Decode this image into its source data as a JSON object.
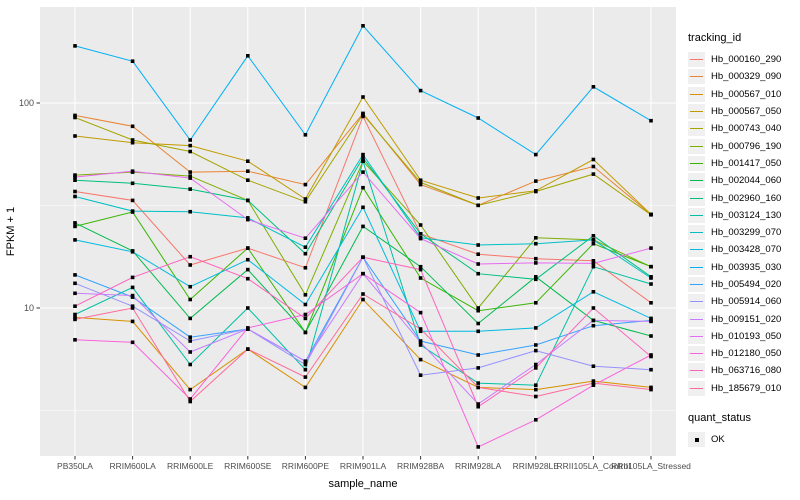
{
  "figure": {
    "y_axis_title": "FPKM + 1",
    "x_axis_title": "sample_name",
    "legend": {
      "tracking_title": "tracking_id",
      "quant_title": "quant_status",
      "quant_items": [
        {
          "label": "OK",
          "marker": "black-square"
        }
      ]
    },
    "colors": {
      "panel_background": "#EBEBEB",
      "grid": "#FFFFFF",
      "point": "#000000",
      "tick_label": "#4D4D4D",
      "tick_mark": "#333333",
      "axis_title": "#000000",
      "legend_key_background": "#F0F0F0"
    }
  },
  "chart_data": {
    "type": "line",
    "title": "",
    "xlabel": "sample_name",
    "ylabel": "FPKM + 1",
    "y_scale": "log10",
    "ylim": [
      1.9,
      295
    ],
    "grid": true,
    "legend_position": "right",
    "point_marker": "filled-black-square",
    "y_ticks": [
      {
        "value": 100,
        "label": "100"
      },
      {
        "value": 10,
        "label": "10"
      }
    ],
    "y_minor_gridlines": [
      3.162,
      31.62,
      316.2
    ],
    "categories": [
      "PB350LA",
      "RRIM600LA",
      "RRIM600LE",
      "RRIM600SE",
      "RRIM600PE",
      "RRIM901LA",
      "RRIM928BA",
      "RRIM928LA",
      "RRIM928LE",
      "RRII105LA_Control",
      "RRII105LA_Stressed"
    ],
    "series": [
      {
        "name": "Hb_000160_290",
        "color": "#F8766D",
        "values": [
          37,
          33.5,
          16.2,
          19.6,
          15.7,
          86,
          23,
          18.3,
          17.4,
          17,
          10.6
        ]
      },
      {
        "name": "Hb_000329_090",
        "color": "#EA8331",
        "values": [
          87,
          77,
          46,
          46.5,
          40,
          89,
          40,
          31.7,
          41.6,
          49,
          28.6
        ]
      },
      {
        "name": "Hb_000567_010",
        "color": "#D89000",
        "values": [
          9,
          8.6,
          4,
          6.3,
          4.1,
          11,
          5.6,
          4.1,
          4,
          4.4,
          4.1
        ]
      },
      {
        "name": "Hb_000567_050",
        "color": "#C09B00",
        "values": [
          69,
          64,
          62,
          52,
          34,
          107,
          42,
          34.4,
          37.3,
          53,
          28.6
        ]
      },
      {
        "name": "Hb_000743_040",
        "color": "#A3A500",
        "values": [
          85,
          66,
          58,
          42,
          33,
          88,
          41,
          31.7,
          37,
          45,
          28.5
        ]
      },
      {
        "name": "Hb_000796_190",
        "color": "#7CAE00",
        "values": [
          44.5,
          46,
          44,
          33.5,
          11.6,
          52,
          25.4,
          10,
          22,
          21.5,
          15.9
        ]
      },
      {
        "name": "Hb_001417_050",
        "color": "#39B600",
        "values": [
          25,
          29.4,
          11,
          19.6,
          7.6,
          38.6,
          14,
          9.7,
          10.6,
          20.6,
          15.9
        ]
      },
      {
        "name": "Hb_002044_060",
        "color": "#00BB4E",
        "values": [
          26,
          19,
          8.9,
          15.4,
          7.6,
          25,
          15.9,
          8.4,
          14.2,
          8.7,
          7.3
        ]
      },
      {
        "name": "Hb_002960_160",
        "color": "#00BF7D",
        "values": [
          42,
          40.6,
          38,
          33.5,
          18.4,
          54,
          23,
          14.7,
          13.8,
          22.5,
          14.2
        ]
      },
      {
        "name": "Hb_003124_130",
        "color": "#00C1A3",
        "values": [
          9.3,
          12.6,
          5.3,
          10,
          5,
          52,
          6.6,
          4.3,
          4.2,
          15.9,
          13.1
        ]
      },
      {
        "name": "Hb_003299_070",
        "color": "#00BFC4",
        "values": [
          35,
          29.7,
          29.5,
          27.5,
          19.8,
          56,
          22,
          20.3,
          20.6,
          21.5,
          14
        ]
      },
      {
        "name": "Hb_003428_070",
        "color": "#00BAE0",
        "values": [
          21.5,
          18.8,
          12.7,
          17.2,
          10.4,
          31,
          7.7,
          7.7,
          8,
          12,
          8.9
        ]
      },
      {
        "name": "Hb_003935_030",
        "color": "#00B0F6",
        "values": [
          190,
          160,
          66,
          170,
          70,
          238,
          115,
          84.5,
          56,
          120,
          82
        ]
      },
      {
        "name": "Hb_005494_020",
        "color": "#35A2FF",
        "values": [
          14.5,
          11.3,
          7.2,
          7.9,
          5.5,
          17.7,
          6.9,
          5.9,
          6.6,
          8.2,
          8.7
        ]
      },
      {
        "name": "Hb_005914_060",
        "color": "#9590FF",
        "values": [
          13.2,
          10.2,
          6.9,
          7.9,
          5.3,
          17.7,
          4.7,
          5.1,
          6.2,
          5.2,
          5
        ]
      },
      {
        "name": "Hb_009151_020",
        "color": "#C77CFF",
        "values": [
          11.8,
          11.5,
          6.1,
          7.9,
          5.5,
          14.7,
          6.8,
          3.4,
          5.3,
          8.7,
          8.6
        ]
      },
      {
        "name": "Hb_010193_050",
        "color": "#E76BF3",
        "values": [
          43.5,
          46.5,
          43,
          27,
          21.9,
          46,
          21.8,
          16.4,
          16.6,
          16.5,
          19.6
        ]
      },
      {
        "name": "Hb_012180_050",
        "color": "#FA62DB",
        "values": [
          7,
          6.8,
          3.6,
          8,
          9.3,
          14.7,
          9.5,
          2.1,
          2.85,
          4.2,
          5.9
        ]
      },
      {
        "name": "Hb_063716_080",
        "color": "#FF62BC",
        "values": [
          10.2,
          14.1,
          17.8,
          13.9,
          8.9,
          17.7,
          15.4,
          3.3,
          5.1,
          10,
          5.8
        ]
      },
      {
        "name": "Hb_185679_010",
        "color": "#FF6A98",
        "values": [
          8.8,
          10,
          3.5,
          6.3,
          4.6,
          11.7,
          7.9,
          4.1,
          3.7,
          4.3,
          4
        ]
      }
    ],
    "quant_status": "OK"
  }
}
